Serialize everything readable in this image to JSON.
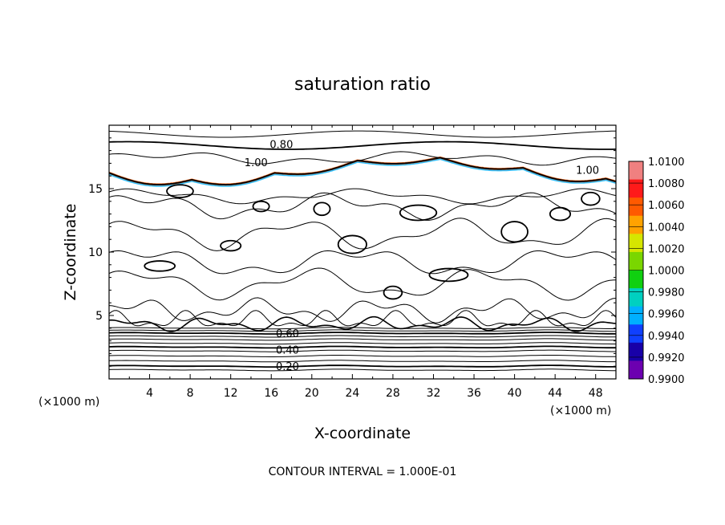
{
  "chart_data": {
    "type": "contour",
    "title": "saturation ratio",
    "xlabel": "X-coordinate",
    "ylabel": "Z-coordinate",
    "x_unit": "(×1000 m)",
    "z_unit": "(×1000 m)",
    "xlim": [
      0,
      50
    ],
    "ylim": [
      0,
      20
    ],
    "x_ticks": [
      "4",
      "8",
      "12",
      "16",
      "20",
      "24",
      "28",
      "32",
      "36",
      "40",
      "44",
      "48"
    ],
    "y_ticks": [
      "5",
      "10",
      "15"
    ],
    "contour_interval_label": "CONTOUR INTERVAL = 1.000E-01",
    "contour_labels": [
      {
        "text": "0.80",
        "x": 17.0,
        "z": 18.5
      },
      {
        "text": "1.00",
        "x": 14.5,
        "z": 17.1
      },
      {
        "text": "1.00",
        "x": 47.2,
        "z": 16.5
      },
      {
        "text": "0.60",
        "x": 17.6,
        "z": 3.6
      },
      {
        "text": "0.40",
        "x": 17.6,
        "z": 2.3
      },
      {
        "text": "0.20",
        "x": 17.6,
        "z": 1.0
      }
    ],
    "colorbar": {
      "levels": [
        "1.0100",
        "1.0080",
        "1.0060",
        "1.0040",
        "1.0020",
        "1.0000",
        "0.9980",
        "0.9960",
        "0.9940",
        "0.9920",
        "0.9900"
      ],
      "colors": [
        "#f08080",
        "#ff1a1a",
        "#ff5a00",
        "#ffa200",
        "#d6e600",
        "#7ad600",
        "#10d010",
        "#00d0c0",
        "#00b0ff",
        "#1040ff",
        "#1800a8",
        "#6c00b0"
      ]
    }
  }
}
